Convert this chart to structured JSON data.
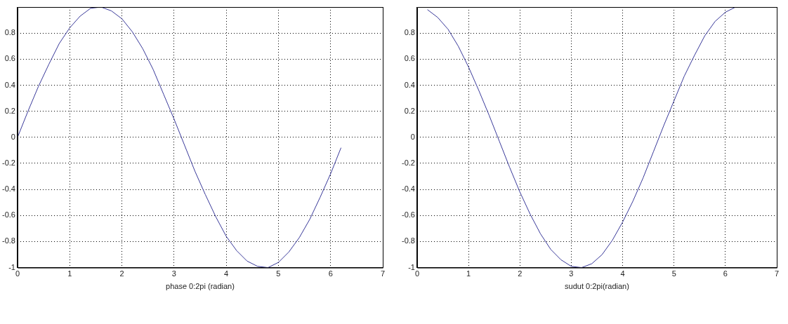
{
  "chart_data": [
    {
      "type": "line",
      "xlabel": "phase 0:2pi (radian)",
      "x": [
        0,
        0.2,
        0.4,
        0.6,
        0.8,
        1.0,
        1.2,
        1.4,
        1.6,
        1.8,
        2.0,
        2.2,
        2.4,
        2.6,
        2.8,
        3.0,
        3.2,
        3.4,
        3.6,
        3.8,
        4.0,
        4.2,
        4.4,
        4.6,
        4.8,
        5.0,
        5.2,
        5.4,
        5.6,
        5.8,
        6.0,
        6.2
      ],
      "series": [
        {
          "color": "#3a3a9a",
          "values": [
            0,
            0.2,
            0.39,
            0.56,
            0.72,
            0.84,
            0.93,
            0.99,
            1.0,
            0.97,
            0.91,
            0.81,
            0.68,
            0.52,
            0.33,
            0.14,
            -0.06,
            -0.26,
            -0.44,
            -0.61,
            -0.76,
            -0.87,
            -0.95,
            -0.99,
            -1.0,
            -0.96,
            -0.88,
            -0.77,
            -0.63,
            -0.46,
            -0.28,
            -0.08
          ]
        }
      ],
      "xlim": [
        0,
        7
      ],
      "xticks": [
        0,
        1,
        2,
        3,
        4,
        5,
        6,
        7
      ],
      "ylim": [
        -1,
        1
      ],
      "yticks": [
        -1,
        -0.8,
        -0.6,
        -0.4,
        -0.2,
        0,
        0.2,
        0.4,
        0.6,
        0.8
      ],
      "grid": true,
      "legend": false,
      "marker": "none",
      "line_style": "solid"
    },
    {
      "type": "line",
      "xlabel": "sudut 0:2pi(radian)",
      "x": [
        0.2,
        0.4,
        0.6,
        0.8,
        1.0,
        1.2,
        1.4,
        1.6,
        1.8,
        2.0,
        2.2,
        2.4,
        2.6,
        2.8,
        3.0,
        3.2,
        3.4,
        3.6,
        3.8,
        4.0,
        4.2,
        4.4,
        4.6,
        4.8,
        5.0,
        5.2,
        5.4,
        5.6,
        5.8,
        6.0,
        6.2
      ],
      "series": [
        {
          "color": "#3a3a9a",
          "values": [
            0.98,
            0.92,
            0.83,
            0.7,
            0.54,
            0.36,
            0.17,
            -0.03,
            -0.23,
            -0.42,
            -0.59,
            -0.74,
            -0.86,
            -0.94,
            -0.99,
            -1.0,
            -0.97,
            -0.9,
            -0.79,
            -0.65,
            -0.49,
            -0.31,
            -0.11,
            0.09,
            0.28,
            0.47,
            0.63,
            0.78,
            0.89,
            0.96,
            1.0
          ]
        }
      ],
      "xlim": [
        0,
        7
      ],
      "xticks": [
        0,
        1,
        2,
        3,
        4,
        5,
        6,
        7
      ],
      "ylim": [
        -1,
        1
      ],
      "yticks": [
        -1,
        -0.8,
        -0.6,
        -0.4,
        -0.2,
        0,
        0.2,
        0.4,
        0.6,
        0.8
      ],
      "grid": true,
      "legend": false,
      "marker": "none",
      "line_style": "solid"
    }
  ]
}
